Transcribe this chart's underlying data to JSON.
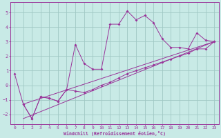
{
  "xlabel": "Windchill (Refroidissement éolien,°C)",
  "bg_color": "#c8eae6",
  "grid_color": "#a0c8c4",
  "line_color": "#993399",
  "spine_color": "#993399",
  "xlim": [
    -0.5,
    23.5
  ],
  "ylim": [
    -2.7,
    5.7
  ],
  "yticks": [
    -2,
    -1,
    0,
    1,
    2,
    3,
    4,
    5
  ],
  "xticks": [
    0,
    1,
    2,
    3,
    4,
    5,
    6,
    7,
    8,
    9,
    10,
    11,
    12,
    13,
    14,
    15,
    16,
    17,
    18,
    19,
    20,
    21,
    22,
    23
  ],
  "line1_x": [
    0,
    1,
    2,
    3,
    4,
    5,
    6,
    7,
    8,
    9,
    10,
    11,
    12,
    13,
    14,
    15,
    16,
    17,
    18,
    19,
    20,
    21,
    22,
    23
  ],
  "line1_y": [
    0.8,
    -1.3,
    -2.3,
    -0.8,
    -0.9,
    -1.1,
    -0.3,
    2.8,
    1.5,
    1.1,
    1.1,
    4.2,
    4.2,
    5.1,
    4.5,
    4.8,
    4.3,
    3.2,
    2.6,
    2.6,
    2.5,
    3.6,
    3.1,
    3.0
  ],
  "line2_x": [
    1,
    2,
    3,
    4,
    5,
    6,
    7,
    8,
    9,
    10,
    11,
    12,
    13,
    14,
    15,
    16,
    17,
    18,
    19,
    20,
    21,
    22,
    23
  ],
  "line2_y": [
    -1.3,
    -2.3,
    -0.8,
    -0.9,
    -1.1,
    -0.3,
    -0.4,
    -0.5,
    -0.3,
    0.0,
    0.2,
    0.5,
    0.8,
    1.0,
    1.2,
    1.4,
    1.6,
    1.8,
    2.0,
    2.2,
    2.5,
    2.5,
    3.0
  ],
  "line3_x": [
    1,
    23
  ],
  "line3_y": [
    -1.3,
    3.0
  ],
  "line4_x": [
    1,
    23
  ],
  "line4_y": [
    -2.3,
    3.0
  ]
}
